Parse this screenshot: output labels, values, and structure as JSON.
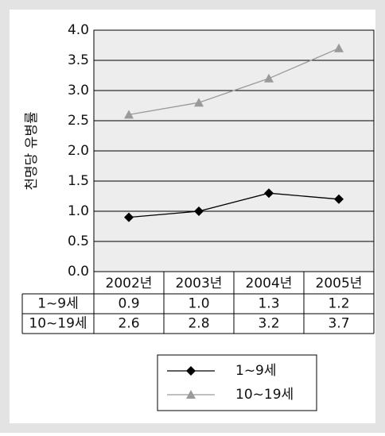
{
  "chart_data": {
    "type": "line",
    "ylabel": "천명당 유병률",
    "categories": [
      "2002년",
      "2003년",
      "2004년",
      "2005년"
    ],
    "series": [
      {
        "name": "1~9세",
        "color": "#000000",
        "marker": "diamond",
        "values": [
          0.9,
          1.0,
          1.3,
          1.2
        ],
        "value_labels": [
          "0.9",
          "1.0",
          "1.3",
          "1.2"
        ]
      },
      {
        "name": "10~19세",
        "color": "#9a9a9a",
        "marker": "triangle",
        "values": [
          2.6,
          2.8,
          3.2,
          3.7
        ],
        "value_labels": [
          "2.6",
          "2.8",
          "3.2",
          "3.7"
        ]
      }
    ],
    "ylim": [
      0,
      4
    ],
    "yticks": [
      {
        "value": 0,
        "label": "0.0"
      },
      0.5,
      {
        "value": 1,
        "label": "1.0"
      },
      1.5,
      {
        "value": 2,
        "label": "2.0"
      },
      2.5,
      {
        "value": 3,
        "label": "3.0"
      },
      3.5,
      {
        "value": 4,
        "label": "4.0"
      }
    ],
    "grid": true
  }
}
